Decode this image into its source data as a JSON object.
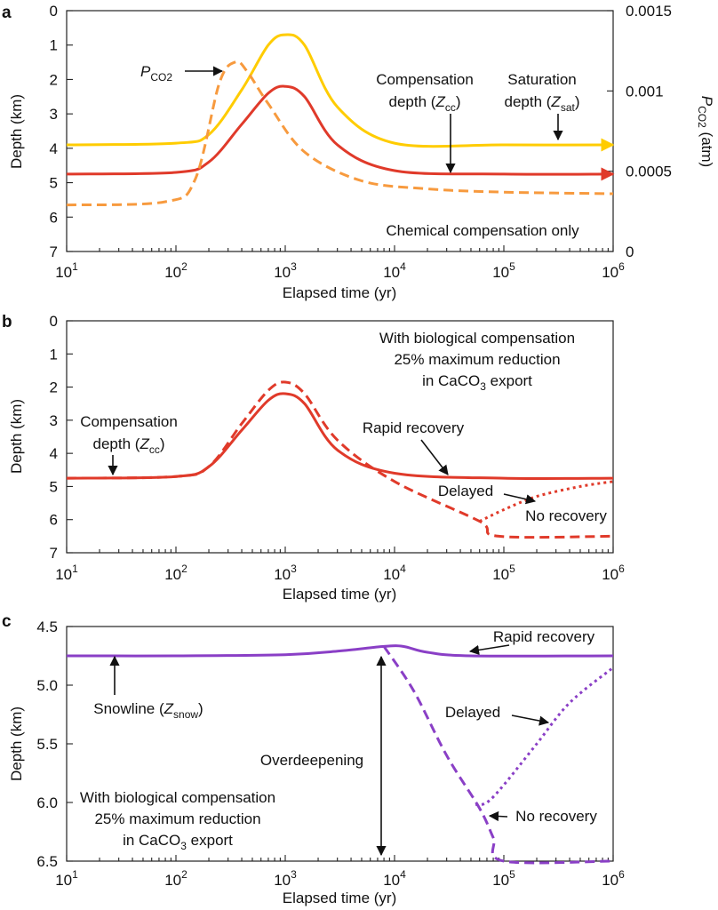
{
  "colors": {
    "yellow": "#FFCC00",
    "orange": "#F79A3E",
    "red": "#E03A2A",
    "purple": "#8A3FC6",
    "black": "#111111"
  },
  "chart_data": [
    {
      "panel": "a",
      "type": "line",
      "xscale": "log",
      "xlim": [
        10,
        1000000
      ],
      "ylim": [
        7,
        0
      ],
      "y_inverted": true,
      "xlabel": "Elapsed time (yr)",
      "ylabel": "Depth  (km)",
      "ylabel_right": "P_CO2 (atm)",
      "y2lim": [
        0,
        0.0015
      ],
      "xticks": [
        10,
        100,
        1000,
        10000,
        100000,
        1000000
      ],
      "yticks": [
        "0",
        "1",
        "2",
        "3",
        "4",
        "5",
        "6",
        "7"
      ],
      "y2ticks": [
        "0",
        "0.0005",
        "0.001",
        "0.0015"
      ],
      "series": [
        {
          "name": "Saturation depth (Z_sat)",
          "axis": "left",
          "style": "solid",
          "color": "#FFCC00",
          "x": [
            10,
            100,
            200,
            400,
            700,
            1000,
            1500,
            3000,
            10000,
            100000,
            1000000
          ],
          "y": [
            3.9,
            3.85,
            3.6,
            2.3,
            1.0,
            0.7,
            1.0,
            2.8,
            3.85,
            3.9,
            3.9
          ]
        },
        {
          "name": "Compensation depth (Z_cc)",
          "axis": "left",
          "style": "solid",
          "color": "#E03A2A",
          "x": [
            10,
            100,
            200,
            400,
            700,
            1000,
            1500,
            3000,
            10000,
            100000,
            1000000
          ],
          "y": [
            4.75,
            4.7,
            4.4,
            3.3,
            2.4,
            2.2,
            2.5,
            3.9,
            4.65,
            4.75,
            4.75
          ]
        },
        {
          "name": "P_CO2",
          "axis": "right",
          "style": "dashed",
          "color": "#F79A3E",
          "x": [
            10,
            80,
            150,
            250,
            350,
            450,
            700,
            1500,
            5000,
            20000,
            100000,
            1000000
          ],
          "y": [
            0.00029,
            0.00031,
            0.00045,
            0.00105,
            0.00118,
            0.00112,
            0.00092,
            0.00062,
            0.00044,
            0.00039,
            0.00037,
            0.00036
          ]
        }
      ],
      "annotations": [
        "Compensation",
        "depth (Z_cc)",
        "Saturation",
        "depth (Z_sat)",
        "Chemical compensation only"
      ]
    },
    {
      "panel": "b",
      "type": "line",
      "xscale": "log",
      "xlim": [
        10,
        1000000
      ],
      "ylim": [
        7,
        0
      ],
      "y_inverted": true,
      "xlabel": "Elapsed time (yr)",
      "ylabel": "Depth  (km)",
      "xticks": [
        10,
        100,
        1000,
        10000,
        100000,
        1000000
      ],
      "yticks": [
        "0",
        "1",
        "2",
        "3",
        "4",
        "5",
        "6",
        "7"
      ],
      "series": [
        {
          "name": "Rapid recovery",
          "style": "solid",
          "color": "#E03A2A",
          "x": [
            10,
            100,
            200,
            400,
            700,
            1000,
            1500,
            3000,
            10000,
            100000,
            1000000
          ],
          "y": [
            4.75,
            4.7,
            4.4,
            3.3,
            2.4,
            2.2,
            2.5,
            3.9,
            4.6,
            4.75,
            4.75
          ]
        },
        {
          "name": "No recovery",
          "style": "dashed",
          "color": "#E03A2A",
          "x": [
            10,
            100,
            200,
            400,
            700,
            1000,
            1500,
            3000,
            10000,
            60000,
            90000,
            1000000
          ],
          "y": [
            4.75,
            4.7,
            4.4,
            3.1,
            2.1,
            1.85,
            2.2,
            3.6,
            4.85,
            6.05,
            6.5,
            6.5
          ]
        },
        {
          "name": "Delayed",
          "style": "dotted",
          "color": "#E03A2A",
          "x": [
            60000,
            100000,
            200000,
            500000,
            1000000
          ],
          "y": [
            6.05,
            5.7,
            5.3,
            5.0,
            4.85
          ]
        }
      ],
      "annotations": [
        "With biological compensation",
        "25% maximum reduction",
        "in CaCO3 export",
        "Compensation",
        "depth (Z_cc)",
        "Rapid recovery",
        "Delayed",
        "No recovery"
      ]
    },
    {
      "panel": "c",
      "type": "line",
      "xscale": "log",
      "xlim": [
        10,
        1000000
      ],
      "ylim": [
        6.5,
        4.5
      ],
      "y_inverted": true,
      "xlabel": "Elapsed time (yr)",
      "ylabel": "Depth  (km)",
      "xticks": [
        10,
        100,
        1000,
        10000,
        100000,
        1000000
      ],
      "yticks": [
        "4.5",
        "5.0",
        "5.5",
        "6.0",
        "6.5"
      ],
      "series": [
        {
          "name": "Rapid recovery",
          "style": "solid",
          "color": "#8A3FC6",
          "x": [
            10,
            100,
            1000,
            3000,
            8000,
            12000,
            20000,
            50000,
            1000000
          ],
          "y": [
            4.75,
            4.75,
            4.74,
            4.71,
            4.67,
            4.67,
            4.72,
            4.75,
            4.75
          ]
        },
        {
          "name": "No recovery",
          "style": "dashed",
          "color": "#8A3FC6",
          "x": [
            8000,
            15000,
            30000,
            60000,
            80000,
            100000,
            1000000
          ],
          "y": [
            4.67,
            5.05,
            5.6,
            6.05,
            6.3,
            6.5,
            6.5
          ]
        },
        {
          "name": "Delayed",
          "style": "dotted",
          "color": "#8A3FC6",
          "x": [
            55000,
            70000,
            100000,
            200000,
            400000,
            1000000
          ],
          "y": [
            6.02,
            6.0,
            5.85,
            5.5,
            5.15,
            4.85
          ]
        }
      ],
      "annotations": [
        "Rapid recovery",
        "Snowline (Z_snow)",
        "Delayed",
        "Overdeepening",
        "No recovery",
        "With biological compensation",
        "25% maximum reduction",
        "in CaCO3 export"
      ]
    }
  ],
  "text": {
    "panel_a": "a",
    "panel_b": "b",
    "panel_c": "c",
    "xlabel": "Elapsed time (yr)",
    "ylabel": "Depth  (km)",
    "pco2_P": "P",
    "pco2_sub": "CO2",
    "y2_P": "P",
    "y2_sub": "CO2",
    "y2_unit": " (atm)",
    "comp1": "Compensation",
    "comp2_pre": "depth (",
    "Z": "Z",
    "cc": "cc",
    "sat": "sat",
    "snow": "snow",
    "close_paren": ")",
    "sat1": "Saturation",
    "sat2_pre": "depth (",
    "chem_only": "Chemical compensation only",
    "bio1": "With biological compensation",
    "bio2": "25% maximum reduction",
    "bio3_pre": "in CaCO",
    "bio3_sub": "3",
    "bio3_post": " export",
    "rapid": "Rapid recovery",
    "delayed": "Delayed",
    "no_recovery": "No recovery",
    "snowline_pre": "Snowline (",
    "overdeep": "Overdeepening",
    "ten": "10"
  }
}
